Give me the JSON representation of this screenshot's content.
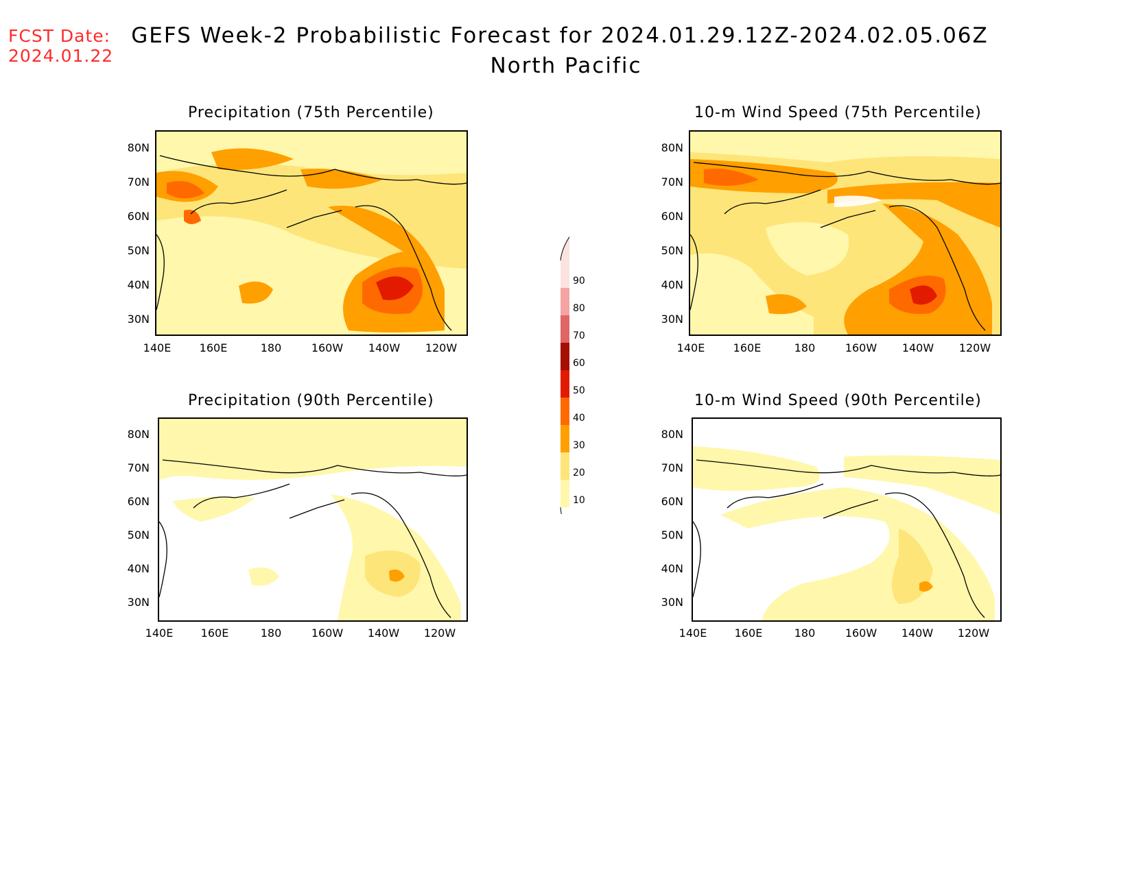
{
  "header": {
    "fcst_label": "FCST Date:",
    "fcst_date": "2024.01.22",
    "title_line1": "GEFS Week-2 Probabilistic Forecast for 2024.01.29.12Z-2024.02.05.06Z",
    "title_line2": "North Pacific"
  },
  "lat_ticks": [
    "80N",
    "70N",
    "60N",
    "50N",
    "40N",
    "30N"
  ],
  "lon_ticks": [
    "140E",
    "160E",
    "180",
    "160W",
    "140W",
    "120W"
  ],
  "colorbar": {
    "levels": [
      "90",
      "80",
      "70",
      "60",
      "50",
      "40",
      "30",
      "20",
      "10"
    ],
    "colors": [
      "#fde2e2",
      "#f4a4a4",
      "#e06666",
      "#a50f00",
      "#e21b00",
      "#ff6a00",
      "#ff9f00",
      "#fde57a",
      "#fff7ab"
    ]
  },
  "panels": [
    {
      "id": "precip75",
      "title": "Precipitation (75th Percentile)"
    },
    {
      "id": "wind75",
      "title": "10-m Wind Speed (75th Percentile)"
    },
    {
      "id": "precip90",
      "title": "Precipitation (90th Percentile)"
    },
    {
      "id": "wind90",
      "title": "10-m Wind Speed (90th Percentile)"
    }
  ]
}
